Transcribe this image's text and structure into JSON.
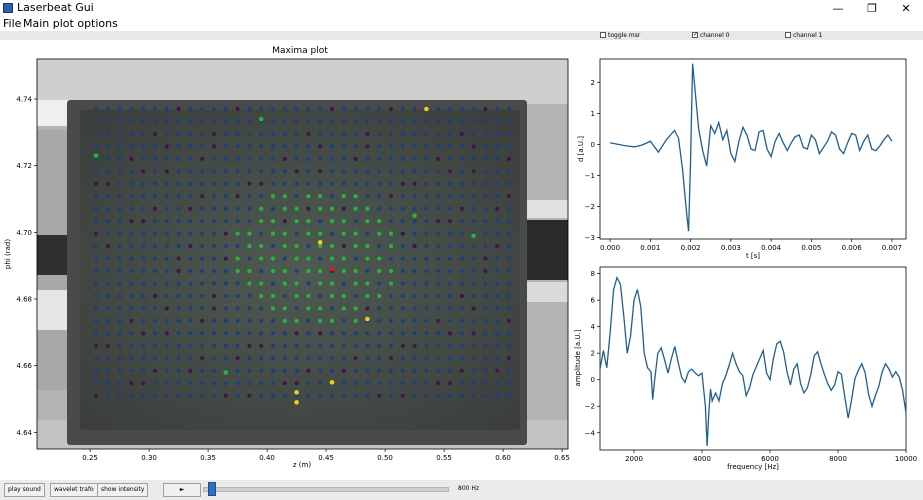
{
  "window": {
    "title": "Laserbeat Gui",
    "minimize": "—",
    "maximize": "❐",
    "close": "✕"
  },
  "menu": [
    "File",
    "Main plot options"
  ],
  "checkboxes": [
    {
      "label": "toggle msr",
      "checked": false
    },
    {
      "label": "channel 0",
      "checked": true
    },
    {
      "label": "channel 1",
      "checked": false
    }
  ],
  "buttons": {
    "play_sound": "play sound",
    "wavelet_trafo": "wavelet trafo",
    "show_intensity": "show intensity",
    "play": "►"
  },
  "slider": {
    "value_label": "800 Hz",
    "level": 0.02
  },
  "chart_data": [
    {
      "type": "scatter",
      "title": "Maxima plot",
      "xlabel": "z (m)",
      "ylabel": "phi (rad)",
      "x_ticks": [
        "0.25",
        "0.30",
        "0.35",
        "0.40",
        "0.45",
        "0.50",
        "0.55",
        "0.60",
        "0.65"
      ],
      "y_ticks": [
        "4.74",
        "4.72",
        "4.70",
        "4.68",
        "4.66",
        "4.64"
      ],
      "xlim": [
        0.205,
        0.655
      ],
      "ylim": [
        4.635,
        4.752
      ],
      "grid": {
        "cols": 36,
        "rows": 24,
        "x_start": 0.255,
        "x_end": 0.605,
        "y_start": 4.651,
        "y_end": 4.737
      },
      "colors": {
        "default": "#1e3f7a",
        "dark": "#3a1a40",
        "green": "#28b53a",
        "yellow": "#e8d21e",
        "red": "#e01818"
      },
      "highlights": [
        {
          "z": 0.455,
          "phi": 4.689,
          "color": "red"
        },
        {
          "z": 0.535,
          "phi": 4.737,
          "color": "yellow"
        },
        {
          "z": 0.485,
          "phi": 4.674,
          "color": "yellow"
        },
        {
          "z": 0.445,
          "phi": 4.697,
          "color": "yellow"
        },
        {
          "z": 0.425,
          "phi": 4.652,
          "color": "yellow"
        },
        {
          "z": 0.425,
          "phi": 4.649,
          "color": "yellow"
        },
        {
          "z": 0.455,
          "phi": 4.655,
          "color": "yellow"
        },
        {
          "z": 0.255,
          "phi": 4.723,
          "color": "green"
        },
        {
          "z": 0.395,
          "phi": 4.734,
          "color": "green"
        },
        {
          "z": 0.525,
          "phi": 4.705,
          "color": "green"
        },
        {
          "z": 0.575,
          "phi": 4.699,
          "color": "green"
        },
        {
          "z": 0.365,
          "phi": 4.658,
          "color": "green"
        }
      ],
      "green_cluster": {
        "z_range": [
          0.375,
          0.505
        ],
        "phi_range": [
          4.672,
          4.712
        ]
      }
    },
    {
      "type": "line",
      "xlabel": "t [s]",
      "ylabel": "d [a.U.]",
      "x_ticks": [
        "0.000",
        "0.001",
        "0.002",
        "0.003",
        "0.004",
        "0.005",
        "0.006",
        "0.007"
      ],
      "y_ticks": [
        "2",
        "1",
        "0",
        "−1",
        "−2",
        "−3"
      ],
      "xlim": [
        -0.00025,
        0.00735
      ],
      "ylim": [
        -3.05,
        2.75
      ],
      "color": "#1f5f8f",
      "x": [
        0.0,
        0.0002,
        0.0004,
        0.0006,
        0.0008,
        0.001,
        0.0012,
        0.0014,
        0.0016,
        0.0017,
        0.0018,
        0.0019,
        0.00195,
        0.002,
        0.00205,
        0.0021,
        0.0022,
        0.0023,
        0.0024,
        0.0025,
        0.0026,
        0.0027,
        0.0028,
        0.0029,
        0.003,
        0.0031,
        0.0032,
        0.0033,
        0.0034,
        0.0035,
        0.0036,
        0.0037,
        0.0038,
        0.0039,
        0.004,
        0.0041,
        0.0042,
        0.0043,
        0.0044,
        0.0045,
        0.0046,
        0.0047,
        0.0048,
        0.0049,
        0.005,
        0.0051,
        0.0052,
        0.0053,
        0.0054,
        0.0055,
        0.0056,
        0.0057,
        0.0058,
        0.0059,
        0.006,
        0.0061,
        0.0062,
        0.0063,
        0.0064,
        0.0065,
        0.0066,
        0.0067,
        0.0068,
        0.0069,
        0.007
      ],
      "y": [
        0.05,
        0.0,
        -0.05,
        -0.08,
        -0.02,
        0.1,
        -0.25,
        0.15,
        0.45,
        0.2,
        -0.8,
        -2.2,
        -2.8,
        -0.5,
        2.6,
        1.9,
        0.5,
        -0.2,
        -0.7,
        0.6,
        0.35,
        0.7,
        0.15,
        0.45,
        -0.3,
        -0.55,
        0.1,
        0.55,
        0.3,
        -0.15,
        -0.2,
        0.4,
        0.45,
        -0.15,
        -0.4,
        0.1,
        0.35,
        0.05,
        -0.2,
        0.05,
        0.25,
        0.3,
        -0.1,
        -0.15,
        0.3,
        0.15,
        -0.3,
        -0.1,
        0.1,
        0.4,
        0.3,
        -0.15,
        -0.3,
        0.05,
        0.35,
        0.3,
        -0.2,
        0.1,
        0.3,
        -0.15,
        -0.2,
        -0.05,
        0.15,
        0.3,
        0.1
      ]
    },
    {
      "type": "line",
      "xlabel": "frequency [Hz]",
      "ylabel": "amplitude [a.U.]",
      "x_ticks": [
        "2000",
        "4000",
        "6000",
        "8000",
        "10000"
      ],
      "y_ticks": [
        "8",
        "6",
        "4",
        "2",
        "0",
        "−2",
        "−4"
      ],
      "xlim": [
        1000,
        10000
      ],
      "ylim": [
        -5.3,
        8.5
      ],
      "color": "#1f5f8f",
      "x": [
        1000,
        1100,
        1200,
        1300,
        1400,
        1500,
        1600,
        1700,
        1800,
        1900,
        2000,
        2100,
        2200,
        2300,
        2400,
        2500,
        2550,
        2600,
        2700,
        2800,
        2900,
        3000,
        3100,
        3200,
        3300,
        3400,
        3500,
        3600,
        3700,
        3800,
        3900,
        4000,
        4100,
        4150,
        4200,
        4250,
        4300,
        4400,
        4500,
        4600,
        4700,
        4800,
        4900,
        5000,
        5100,
        5200,
        5300,
        5400,
        5500,
        5600,
        5700,
        5800,
        5900,
        6000,
        6100,
        6200,
        6300,
        6400,
        6500,
        6600,
        6700,
        6800,
        6900,
        7000,
        7100,
        7200,
        7300,
        7400,
        7500,
        7600,
        7700,
        7800,
        7900,
        8000,
        8100,
        8200,
        8300,
        8400,
        8500,
        8600,
        8700,
        8800,
        8900,
        9000,
        9100,
        9200,
        9300,
        9400,
        9500,
        9600,
        9700,
        9800,
        9900,
        10000
      ],
      "y": [
        0.8,
        2.2,
        0.9,
        3.6,
        6.8,
        7.7,
        7.2,
        4.8,
        2.0,
        3.3,
        6.0,
        6.8,
        5.5,
        2.0,
        0.9,
        0.6,
        -1.5,
        -0.2,
        2.0,
        2.4,
        1.5,
        0.5,
        1.6,
        2.5,
        1.3,
        0.2,
        -0.2,
        0.6,
        0.8,
        0.5,
        0.3,
        0.5,
        -2.0,
        -5.0,
        -2.5,
        -0.7,
        -1.6,
        -1.0,
        -1.6,
        -0.3,
        0.3,
        1.1,
        2.0,
        1.2,
        0.6,
        0.3,
        -1.2,
        -0.6,
        0.4,
        1.0,
        1.6,
        2.2,
        0.5,
        0.0,
        1.6,
        2.7,
        2.9,
        2.1,
        0.6,
        -0.4,
        0.8,
        1.2,
        -0.3,
        -1.0,
        -0.6,
        0.4,
        1.8,
        2.1,
        1.2,
        0.4,
        -0.3,
        -0.8,
        -0.4,
        0.6,
        0.4,
        -1.3,
        -2.9,
        -1.5,
        0.1,
        0.7,
        1.2,
        0.5,
        -1.1,
        -2.0,
        -1.2,
        -0.5,
        0.6,
        1.2,
        0.8,
        0.2,
        0.6,
        0.2,
        -0.8,
        -2.5
      ]
    }
  ]
}
